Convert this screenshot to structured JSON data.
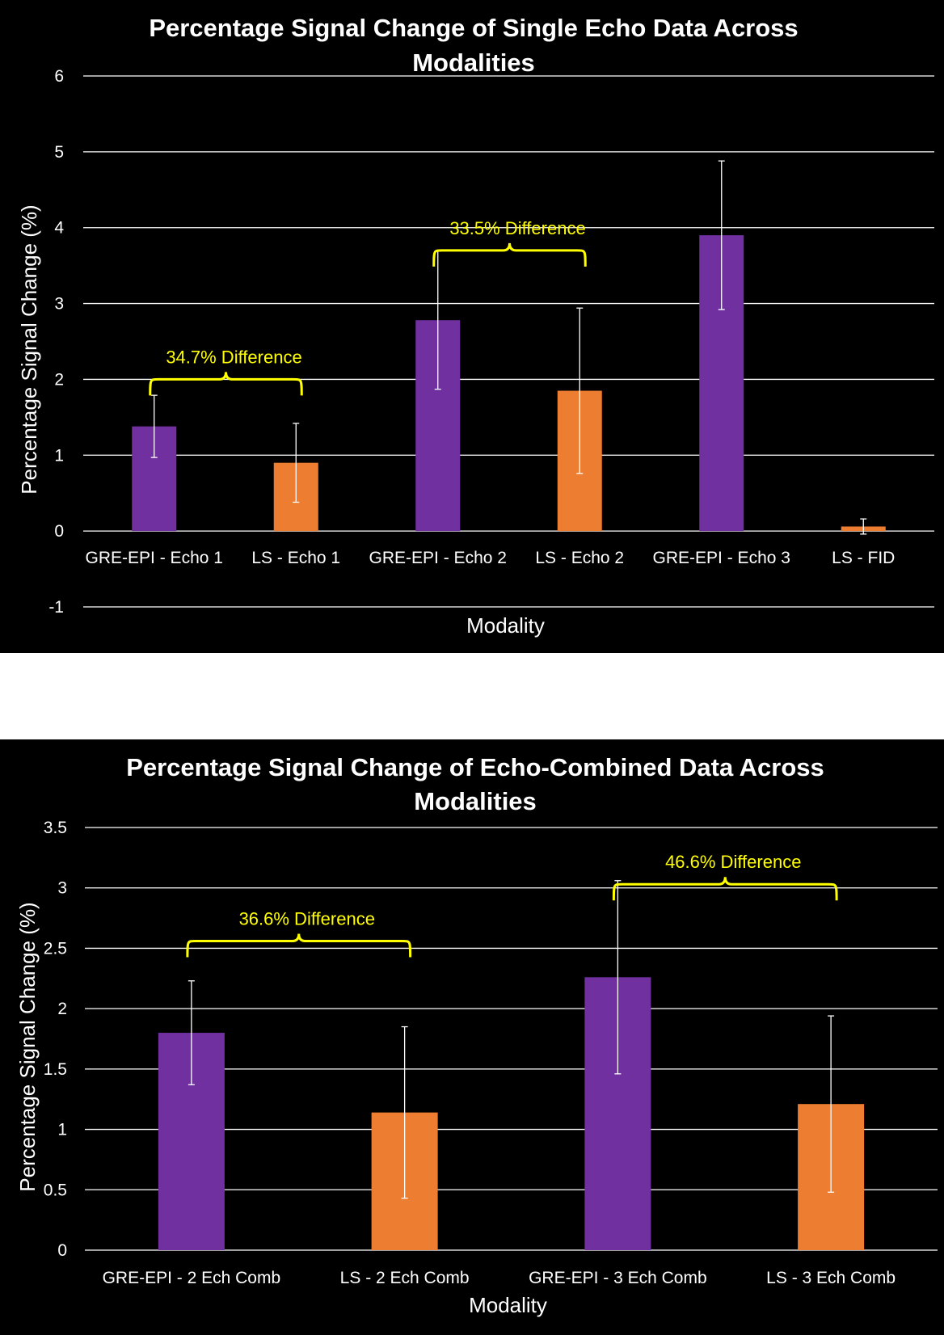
{
  "colors": {
    "background": "#000000",
    "text": "#ffffff",
    "gridline": "#ffffff",
    "gre_epi": "#7030a0",
    "ls": "#ed7d31",
    "error_bar": "#ffffff",
    "annotation": "#ffff00"
  },
  "chart_data": [
    {
      "type": "bar",
      "title_lines": [
        "Percentage Signal Change of Single Echo Data Across",
        "Modalities"
      ],
      "xlabel": "Modality",
      "ylabel": "Percentage Signal Change (%)",
      "ylim": [
        -1,
        6
      ],
      "yticks": [
        -1,
        0,
        1,
        2,
        3,
        4,
        5,
        6
      ],
      "ytick_labels": [
        "-1",
        "0",
        "1",
        "2",
        "3",
        "4",
        "5",
        "6"
      ],
      "grid": true,
      "categories": [
        "GRE-EPI - Echo 1",
        "LS - Echo 1",
        "GRE-EPI - Echo 2",
        "LS - Echo 2",
        "GRE-EPI - Echo 3",
        "LS - FID"
      ],
      "values": [
        1.38,
        0.9,
        2.78,
        1.85,
        3.9,
        0.06
      ],
      "error": [
        0.41,
        0.52,
        0.91,
        1.09,
        0.98,
        0.1
      ],
      "series_of_bar": [
        "gre_epi",
        "ls",
        "gre_epi",
        "ls",
        "gre_epi",
        "ls"
      ],
      "annotations": [
        {
          "text": "34.7% Difference",
          "from": 0,
          "to": 1,
          "y": 2.0
        },
        {
          "text": "33.5% Difference",
          "from": 2,
          "to": 3,
          "y": 3.7
        }
      ]
    },
    {
      "type": "bar",
      "title_lines": [
        "Percentage Signal Change of Echo-Combined Data Across",
        "Modalities"
      ],
      "xlabel": "Modality",
      "ylabel": "Percentage Signal Change (%)",
      "ylim": [
        0,
        3.5
      ],
      "yticks": [
        0,
        0.5,
        1,
        1.5,
        2,
        2.5,
        3,
        3.5
      ],
      "ytick_labels": [
        "0",
        "0.5",
        "1",
        "1.5",
        "2",
        "2.5",
        "3",
        "3.5"
      ],
      "grid": true,
      "categories": [
        "GRE-EPI - 2 Ech Comb",
        "LS - 2 Ech Comb",
        "GRE-EPI - 3 Ech Comb",
        "LS - 3 Ech Comb"
      ],
      "values": [
        1.8,
        1.14,
        2.26,
        1.21
      ],
      "error": [
        0.43,
        0.71,
        0.8,
        0.73
      ],
      "series_of_bar": [
        "gre_epi",
        "ls",
        "gre_epi",
        "ls"
      ],
      "annotations": [
        {
          "text": "36.6% Difference",
          "from": 0,
          "to": 1,
          "y": 2.56
        },
        {
          "text": "46.6% Difference",
          "from": 2,
          "to": 3,
          "y": 3.03
        }
      ]
    }
  ]
}
